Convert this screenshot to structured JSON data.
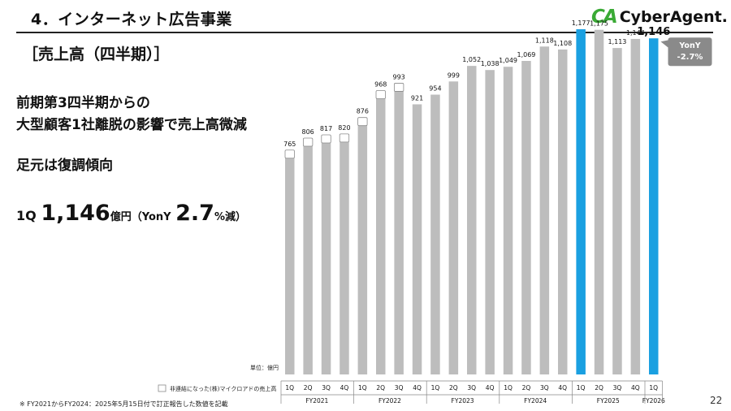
{
  "header": {
    "section_title": "4．インターネット広告事業",
    "subheading": "［売上高（四半期）］"
  },
  "brand": {
    "logo_mark": "CA",
    "logo_text": "CyberAgent."
  },
  "message": {
    "line1": "前期第3四半期からの",
    "line2": "大型顧客1社離脱の影響で売上高微減",
    "line3": "足元は復調傾向"
  },
  "highlight": {
    "quarter": "1Q",
    "value": "1,146",
    "unit": "億円（YonY",
    "yoy": "2.7",
    "yoy_unit": "%減）"
  },
  "footnote": "※ FY2021からFY2024：2025年5月15日付で訂正報告した数値を記載",
  "page_number": "22",
  "chart_data": {
    "type": "bar",
    "unit_label": "単位：億円",
    "legend_label": "非連結になった(株)マイクロアドの売上高",
    "yonY_badge": {
      "label": "YonY",
      "value": "-2.7%"
    },
    "colors": {
      "gray": "#bdbdbd",
      "blue": "#1aa0e1",
      "badge": "#8a8a8a"
    },
    "ylim": [
      0,
      1177
    ],
    "fiscal_years": [
      "FY2021",
      "FY2022",
      "FY2023",
      "FY2024",
      "FY2025",
      "FY2026"
    ],
    "bars": [
      {
        "q": "1Q",
        "fy": "FY2021",
        "value": 765,
        "label": "765",
        "microad": true,
        "color": "gray"
      },
      {
        "q": "2Q",
        "fy": "FY2021",
        "value": 806,
        "label": "806",
        "microad": true,
        "color": "gray"
      },
      {
        "q": "3Q",
        "fy": "FY2021",
        "value": 817,
        "label": "817",
        "microad": true,
        "color": "gray"
      },
      {
        "q": "4Q",
        "fy": "FY2021",
        "value": 820,
        "label": "820",
        "microad": true,
        "color": "gray"
      },
      {
        "q": "1Q",
        "fy": "FY2022",
        "value": 876,
        "label": "876",
        "microad": true,
        "color": "gray"
      },
      {
        "q": "2Q",
        "fy": "FY2022",
        "value": 968,
        "label": "968",
        "microad": true,
        "color": "gray"
      },
      {
        "q": "3Q",
        "fy": "FY2022",
        "value": 993,
        "label": "993",
        "microad": true,
        "color": "gray"
      },
      {
        "q": "4Q",
        "fy": "FY2022",
        "value": 921,
        "label": "921",
        "microad": false,
        "color": "gray"
      },
      {
        "q": "1Q",
        "fy": "FY2023",
        "value": 954,
        "label": "954",
        "microad": false,
        "color": "gray"
      },
      {
        "q": "2Q",
        "fy": "FY2023",
        "value": 999,
        "label": "999",
        "microad": false,
        "color": "gray"
      },
      {
        "q": "3Q",
        "fy": "FY2023",
        "value": 1052,
        "label": "1,052",
        "microad": false,
        "color": "gray"
      },
      {
        "q": "4Q",
        "fy": "FY2023",
        "value": 1038,
        "label": "1,038",
        "microad": false,
        "color": "gray"
      },
      {
        "q": "1Q",
        "fy": "FY2024",
        "value": 1049,
        "label": "1,049",
        "microad": false,
        "color": "gray"
      },
      {
        "q": "2Q",
        "fy": "FY2024",
        "value": 1069,
        "label": "1,069",
        "microad": false,
        "color": "gray"
      },
      {
        "q": "3Q",
        "fy": "FY2024",
        "value": 1118,
        "label": "1,118",
        "microad": false,
        "color": "gray"
      },
      {
        "q": "4Q",
        "fy": "FY2024",
        "value": 1108,
        "label": "1,108",
        "microad": false,
        "color": "gray"
      },
      {
        "q": "1Q",
        "fy": "FY2025",
        "value": 1177,
        "label": "1,177",
        "microad": false,
        "color": "blue"
      },
      {
        "q": "2Q",
        "fy": "FY2025",
        "value": 1175,
        "label": "1,175",
        "microad": false,
        "color": "gray"
      },
      {
        "q": "3Q",
        "fy": "FY2025",
        "value": 1113,
        "label": "1,113",
        "microad": false,
        "color": "gray"
      },
      {
        "q": "4Q",
        "fy": "FY2025",
        "value": 1144,
        "label": "1,144",
        "microad": false,
        "color": "gray"
      },
      {
        "q": "1Q",
        "fy": "FY2026",
        "value": 1146,
        "label": "1,146",
        "microad": false,
        "color": "blue",
        "emphasis": true
      }
    ]
  }
}
